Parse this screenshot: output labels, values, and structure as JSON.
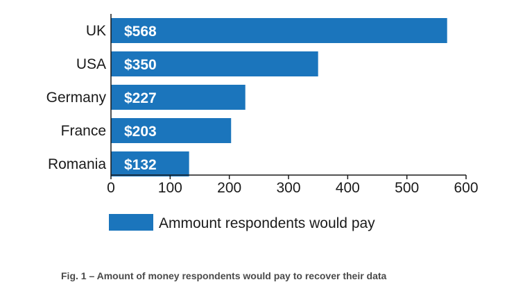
{
  "chart_data": {
    "type": "bar",
    "orientation": "horizontal",
    "categories": [
      "UK",
      "USA",
      "Germany",
      "France",
      "Romania"
    ],
    "series": [
      {
        "name": "Ammount respondents would pay",
        "values": [
          568,
          350,
          227,
          203,
          132
        ],
        "data_labels": [
          "$568",
          "$350",
          "$227",
          "$203",
          "$132"
        ]
      }
    ],
    "xlim": [
      0,
      600
    ],
    "x_ticks": [
      "0",
      "100",
      "200",
      "300",
      "400",
      "500",
      "600"
    ],
    "grid": false,
    "legend_position": "bottom",
    "color": "#1b75bc"
  },
  "caption": "Fig. 1 – Amount of money respondents would pay to recover their data"
}
